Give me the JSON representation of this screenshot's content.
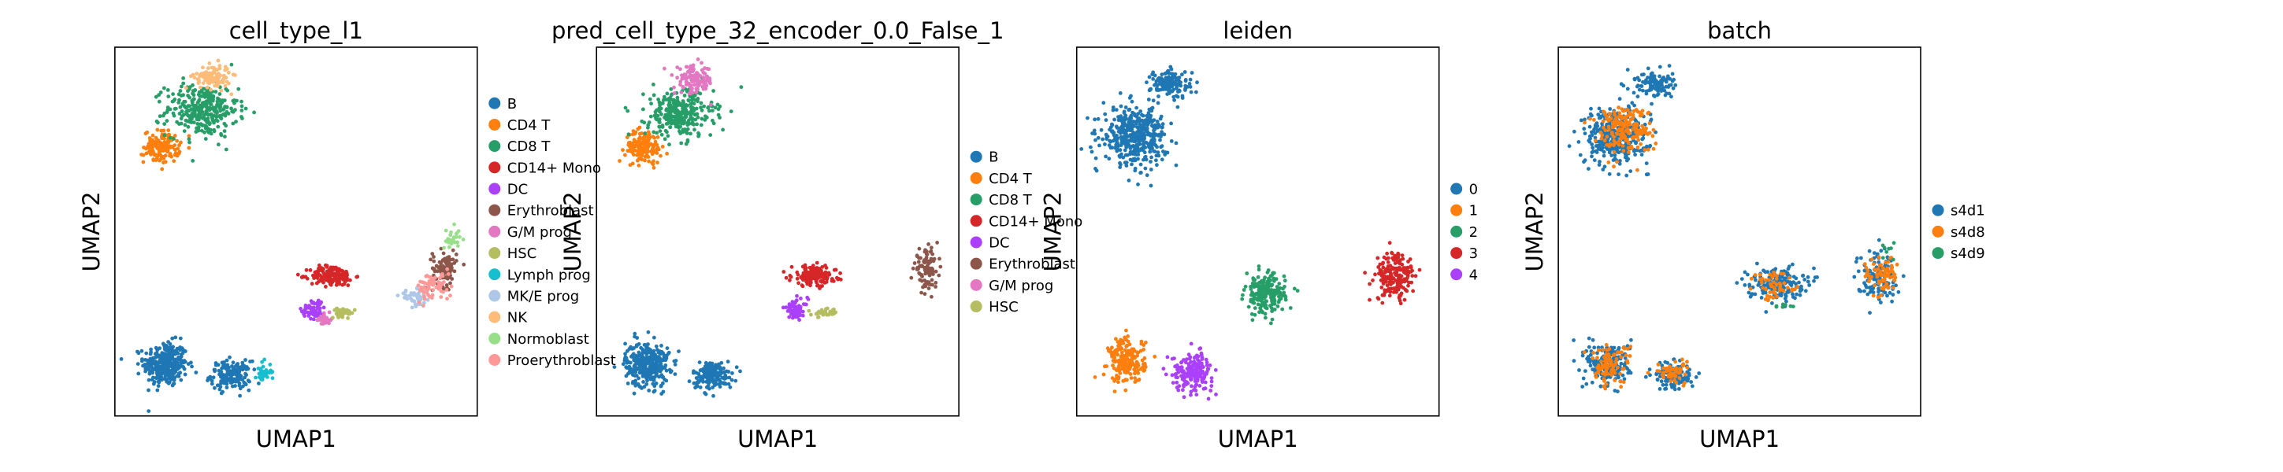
{
  "figure": {
    "panels": [
      {
        "title": "cell_type_l1",
        "xlabel": "UMAP1",
        "ylabel": "UMAP2",
        "legend": [
          {
            "label": "B",
            "color": "#1f77b4"
          },
          {
            "label": "CD4 T",
            "color": "#ff7f0e"
          },
          {
            "label": "CD8 T",
            "color": "#279e68"
          },
          {
            "label": "CD14+ Mono",
            "color": "#d62728"
          },
          {
            "label": "DC",
            "color": "#aa40fc"
          },
          {
            "label": "Erythroblast",
            "color": "#8c564b"
          },
          {
            "label": "G/M prog",
            "color": "#e377c2"
          },
          {
            "label": "HSC",
            "color": "#b5bd61"
          },
          {
            "label": "Lymph prog",
            "color": "#17becf"
          },
          {
            "label": "MK/E prog",
            "color": "#aec7e8"
          },
          {
            "label": "NK",
            "color": "#ffbb78"
          },
          {
            "label": "Normoblast",
            "color": "#98df8a"
          },
          {
            "label": "Proerythroblast",
            "color": "#ff9896"
          }
        ]
      },
      {
        "title": "pred_cell_type_32_encoder_0.0_False_1",
        "xlabel": "UMAP1",
        "ylabel": "UMAP2",
        "legend": [
          {
            "label": "B",
            "color": "#1f77b4"
          },
          {
            "label": "CD4 T",
            "color": "#ff7f0e"
          },
          {
            "label": "CD8 T",
            "color": "#279e68"
          },
          {
            "label": "CD14+ Mono",
            "color": "#d62728"
          },
          {
            "label": "DC",
            "color": "#aa40fc"
          },
          {
            "label": "Erythroblast",
            "color": "#8c564b"
          },
          {
            "label": "G/M prog",
            "color": "#e377c2"
          },
          {
            "label": "HSC",
            "color": "#b5bd61"
          }
        ]
      },
      {
        "title": "leiden",
        "xlabel": "UMAP1",
        "ylabel": "UMAP2",
        "legend": [
          {
            "label": "0",
            "color": "#1f77b4"
          },
          {
            "label": "1",
            "color": "#ff7f0e"
          },
          {
            "label": "2",
            "color": "#279e68"
          },
          {
            "label": "3",
            "color": "#d62728"
          },
          {
            "label": "4",
            "color": "#aa40fc"
          }
        ]
      },
      {
        "title": "batch",
        "xlabel": "UMAP1",
        "ylabel": "UMAP2",
        "legend": [
          {
            "label": "s4d1",
            "color": "#1f77b4"
          },
          {
            "label": "s4d8",
            "color": "#ff7f0e"
          },
          {
            "label": "s4d9",
            "color": "#279e68"
          }
        ]
      }
    ]
  },
  "chart_data": [
    {
      "type": "scatter",
      "title": "cell_type_l1",
      "xlabel": "UMAP1",
      "ylabel": "UMAP2",
      "xlim": [
        0,
        10
      ],
      "ylim": [
        0,
        10
      ],
      "grid": false,
      "legend_position": "right",
      "series": [
        {
          "name": "B",
          "color": "#1f77b4",
          "clusters": [
            [
              1.4,
              1.4,
              0.55,
              0.55,
              320
            ],
            [
              3.2,
              1.1,
              0.5,
              0.35,
              160
            ]
          ]
        },
        {
          "name": "CD4 T",
          "color": "#ff7f0e",
          "clusters": [
            [
              1.3,
              7.3,
              0.45,
              0.4,
              140
            ]
          ]
        },
        {
          "name": "CD8 T",
          "color": "#279e68",
          "clusters": [
            [
              2.4,
              8.3,
              0.9,
              0.65,
              320
            ]
          ]
        },
        {
          "name": "CD14+ Mono",
          "color": "#d62728",
          "clusters": [
            [
              6.0,
              3.8,
              0.55,
              0.25,
              170
            ]
          ]
        },
        {
          "name": "DC",
          "color": "#aa40fc",
          "clusters": [
            [
              5.5,
              2.9,
              0.3,
              0.25,
              60
            ]
          ]
        },
        {
          "name": "Erythroblast",
          "color": "#8c564b",
          "clusters": [
            [
              9.1,
              4.0,
              0.3,
              0.45,
              100
            ]
          ]
        },
        {
          "name": "G/M prog",
          "color": "#e377c2",
          "clusters": [
            [
              5.8,
              2.6,
              0.2,
              0.15,
              25
            ]
          ]
        },
        {
          "name": "HSC",
          "color": "#b5bd61",
          "clusters": [
            [
              6.3,
              2.8,
              0.3,
              0.1,
              35
            ]
          ]
        },
        {
          "name": "Lymph prog",
          "color": "#17becf",
          "clusters": [
            [
              4.1,
              1.2,
              0.2,
              0.25,
              35
            ]
          ]
        },
        {
          "name": "MK/E prog",
          "color": "#aec7e8",
          "clusters": [
            [
              8.3,
              3.2,
              0.4,
              0.2,
              45
            ]
          ]
        },
        {
          "name": "NK",
          "color": "#ffbb78",
          "clusters": [
            [
              2.7,
              9.2,
              0.45,
              0.3,
              110
            ]
          ]
        },
        {
          "name": "Normoblast",
          "color": "#98df8a",
          "clusters": [
            [
              9.3,
              4.8,
              0.2,
              0.3,
              30
            ]
          ]
        },
        {
          "name": "Proerythroblast",
          "color": "#ff9896",
          "clusters": [
            [
              8.8,
              3.5,
              0.45,
              0.35,
              70
            ]
          ]
        }
      ]
    },
    {
      "type": "scatter",
      "title": "pred_cell_type_32_encoder_0.0_False_1",
      "xlabel": "UMAP1",
      "ylabel": "UMAP2",
      "xlim": [
        0,
        10
      ],
      "ylim": [
        0,
        10
      ],
      "grid": false,
      "legend_position": "right",
      "series": [
        {
          "name": "B",
          "color": "#1f77b4",
          "clusters": [
            [
              1.4,
              1.4,
              0.55,
              0.55,
              320
            ],
            [
              3.2,
              1.1,
              0.5,
              0.35,
              160
            ]
          ]
        },
        {
          "name": "CD4 T",
          "color": "#ff7f0e",
          "clusters": [
            [
              1.3,
              7.3,
              0.45,
              0.4,
              150
            ]
          ]
        },
        {
          "name": "CD8 T",
          "color": "#279e68",
          "clusters": [
            [
              2.3,
              8.2,
              0.85,
              0.6,
              300
            ]
          ]
        },
        {
          "name": "CD14+ Mono",
          "color": "#d62728",
          "clusters": [
            [
              6.0,
              3.8,
              0.55,
              0.25,
              170
            ]
          ]
        },
        {
          "name": "DC",
          "color": "#aa40fc",
          "clusters": [
            [
              5.5,
              2.9,
              0.3,
              0.25,
              60
            ]
          ]
        },
        {
          "name": "Erythroblast",
          "color": "#8c564b",
          "clusters": [
            [
              9.1,
              4.0,
              0.3,
              0.45,
              100
            ]
          ]
        },
        {
          "name": "G/M prog",
          "color": "#e377c2",
          "clusters": [
            [
              2.7,
              9.1,
              0.5,
              0.35,
              120
            ]
          ]
        },
        {
          "name": "HSC",
          "color": "#b5bd61",
          "clusters": [
            [
              6.3,
              2.8,
              0.3,
              0.1,
              35
            ]
          ]
        }
      ]
    },
    {
      "type": "scatter",
      "title": "leiden",
      "xlabel": "UMAP1",
      "ylabel": "UMAP2",
      "xlim": [
        0,
        10
      ],
      "ylim": [
        0,
        10
      ],
      "grid": false,
      "legend_position": "right",
      "series": [
        {
          "name": "0",
          "color": "#1f77b4",
          "clusters": [
            [
              1.6,
              7.6,
              0.8,
              0.7,
              420
            ],
            [
              2.6,
              9.0,
              0.5,
              0.35,
              140
            ]
          ]
        },
        {
          "name": "1",
          "color": "#ff7f0e",
          "clusters": [
            [
              1.4,
              1.5,
              0.45,
              0.55,
              200
            ]
          ]
        },
        {
          "name": "2",
          "color": "#279e68",
          "clusters": [
            [
              5.2,
              3.3,
              0.5,
              0.5,
              200
            ]
          ]
        },
        {
          "name": "3",
          "color": "#d62728",
          "clusters": [
            [
              8.8,
              3.8,
              0.5,
              0.6,
              190
            ]
          ]
        },
        {
          "name": "4",
          "color": "#aa40fc",
          "clusters": [
            [
              3.2,
              1.2,
              0.5,
              0.45,
              180
            ]
          ]
        }
      ]
    },
    {
      "type": "scatter",
      "title": "batch",
      "xlabel": "UMAP1",
      "ylabel": "UMAP2",
      "xlim": [
        0,
        10
      ],
      "ylim": [
        0,
        10
      ],
      "grid": false,
      "legend_position": "right",
      "series": [
        {
          "name": "s4d1",
          "color": "#1f77b4",
          "clusters": [
            [
              1.6,
              7.6,
              0.8,
              0.7,
              330
            ],
            [
              2.6,
              9.0,
              0.5,
              0.35,
              100
            ],
            [
              1.4,
              1.4,
              0.55,
              0.55,
              200
            ],
            [
              3.2,
              1.1,
              0.5,
              0.35,
              110
            ],
            [
              6.0,
              3.6,
              0.7,
              0.4,
              170
            ],
            [
              8.8,
              3.8,
              0.5,
              0.6,
              120
            ]
          ]
        },
        {
          "name": "s4d8",
          "color": "#ff7f0e",
          "clusters": [
            [
              1.8,
              7.8,
              0.7,
              0.6,
              180
            ],
            [
              1.4,
              1.4,
              0.5,
              0.5,
              90
            ],
            [
              3.2,
              1.2,
              0.45,
              0.3,
              50
            ],
            [
              6.0,
              3.5,
              0.6,
              0.35,
              50
            ],
            [
              8.9,
              3.8,
              0.4,
              0.5,
              70
            ]
          ]
        },
        {
          "name": "s4d9",
          "color": "#279e68",
          "clusters": [
            [
              6.3,
              3.0,
              0.3,
              0.1,
              8
            ],
            [
              9.1,
              4.4,
              0.2,
              0.3,
              8
            ]
          ]
        }
      ]
    }
  ]
}
